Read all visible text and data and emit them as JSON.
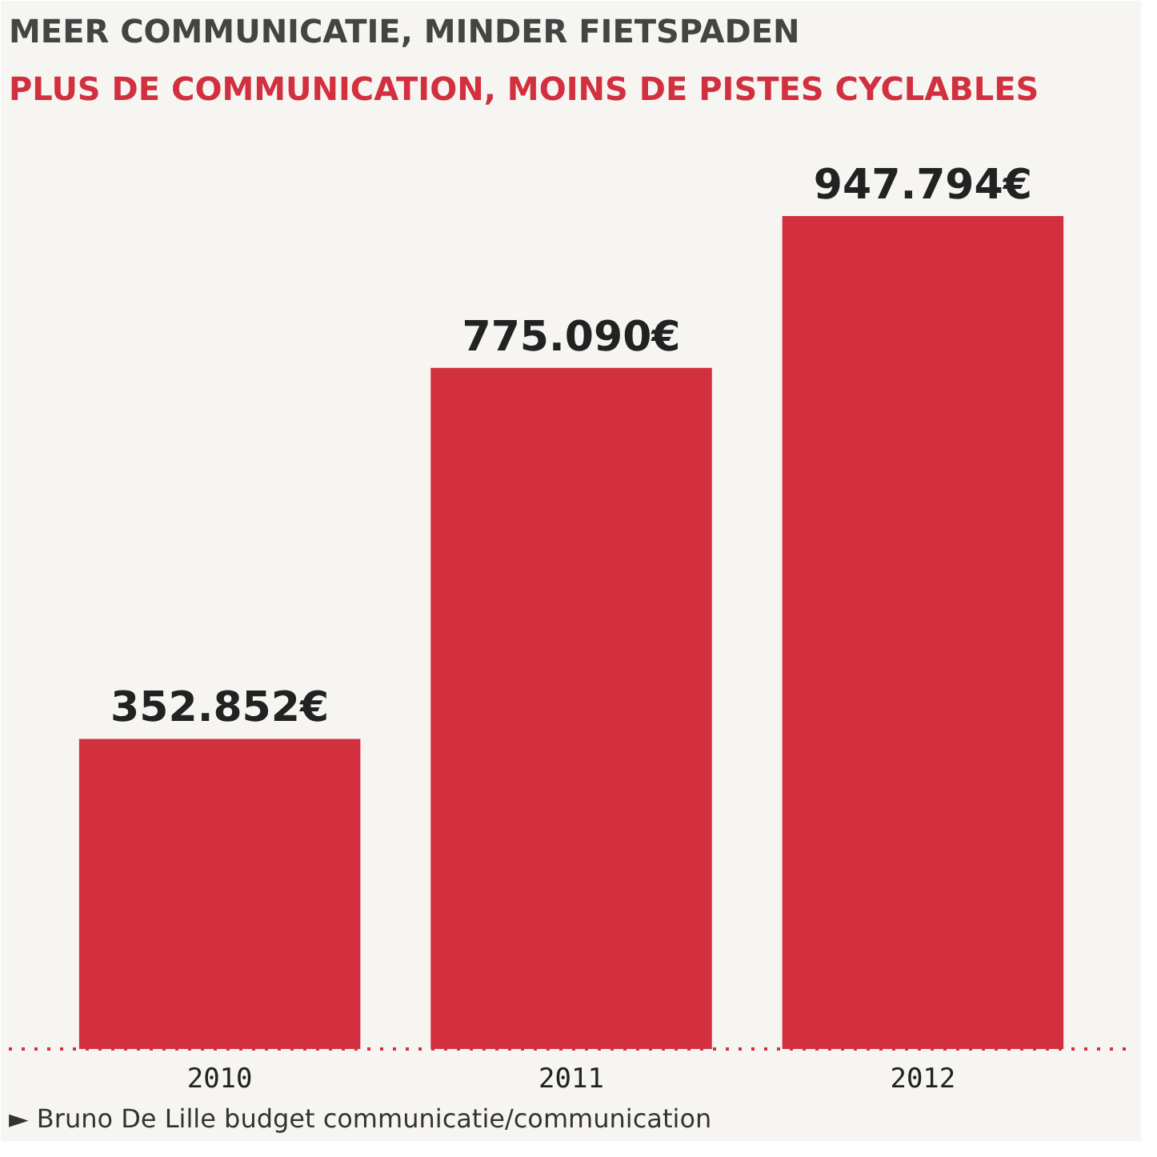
{
  "chart_data": {
    "type": "bar",
    "title": "MEER COMMUNICATIE, MINDER FIETSPADEN",
    "subtitle": "PLUS DE COMMUNICATION, MOINS DE PISTES CYCLABLES",
    "categories": [
      "2010",
      "2011",
      "2012"
    ],
    "values": [
      352852,
      775090,
      947794
    ],
    "value_labels": [
      "352.852€",
      "775.090€",
      "947.794€"
    ],
    "color": "#d2303e",
    "annotations": [
      "► Bruno De Lille budget communicatie/communication"
    ]
  }
}
